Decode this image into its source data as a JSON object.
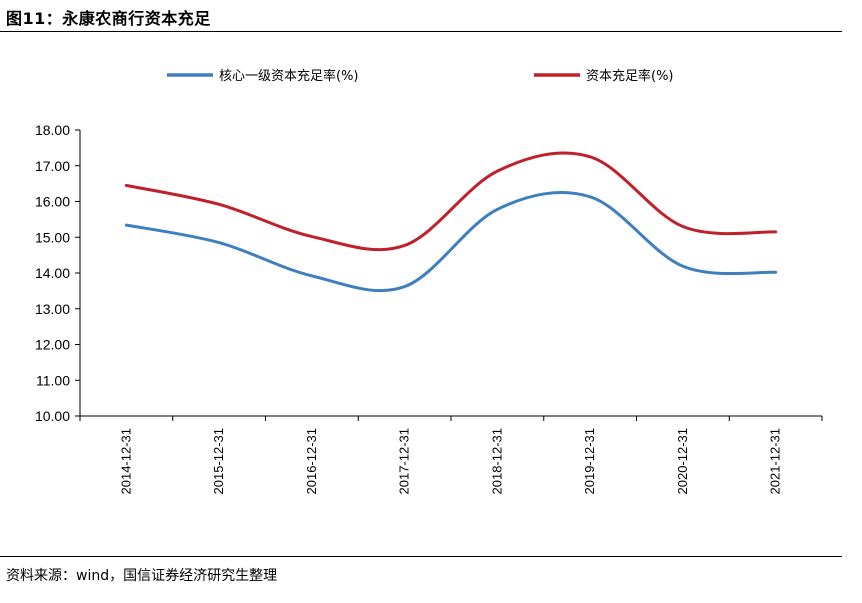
{
  "figure": {
    "title": "图11：永康农商行资本充足",
    "source": "资料来源：wind，国信证券经济研究生整理"
  },
  "chart_data": {
    "type": "line",
    "title": "",
    "xlabel": "",
    "ylabel": "",
    "categories": [
      "2014-12-31",
      "2015-12-31",
      "2016-12-31",
      "2017-12-31",
      "2018-12-31",
      "2019-12-31",
      "2020-12-31",
      "2021-12-31"
    ],
    "y_ticks": [
      "10.00",
      "11.00",
      "12.00",
      "13.00",
      "14.00",
      "15.00",
      "16.00",
      "17.00",
      "18.00"
    ],
    "ylim": [
      10,
      18
    ],
    "grid": false,
    "legend_position": "top",
    "series": [
      {
        "name": "核心一级资本充足率(%)",
        "color": "#3f7fbf",
        "values": [
          15.34,
          14.85,
          13.92,
          13.62,
          15.78,
          16.13,
          14.19,
          14.02
        ]
      },
      {
        "name": "资本充足率(%)",
        "color": "#c0202a",
        "values": [
          16.45,
          15.92,
          15.02,
          14.77,
          16.85,
          17.25,
          15.3,
          15.15
        ]
      }
    ]
  }
}
